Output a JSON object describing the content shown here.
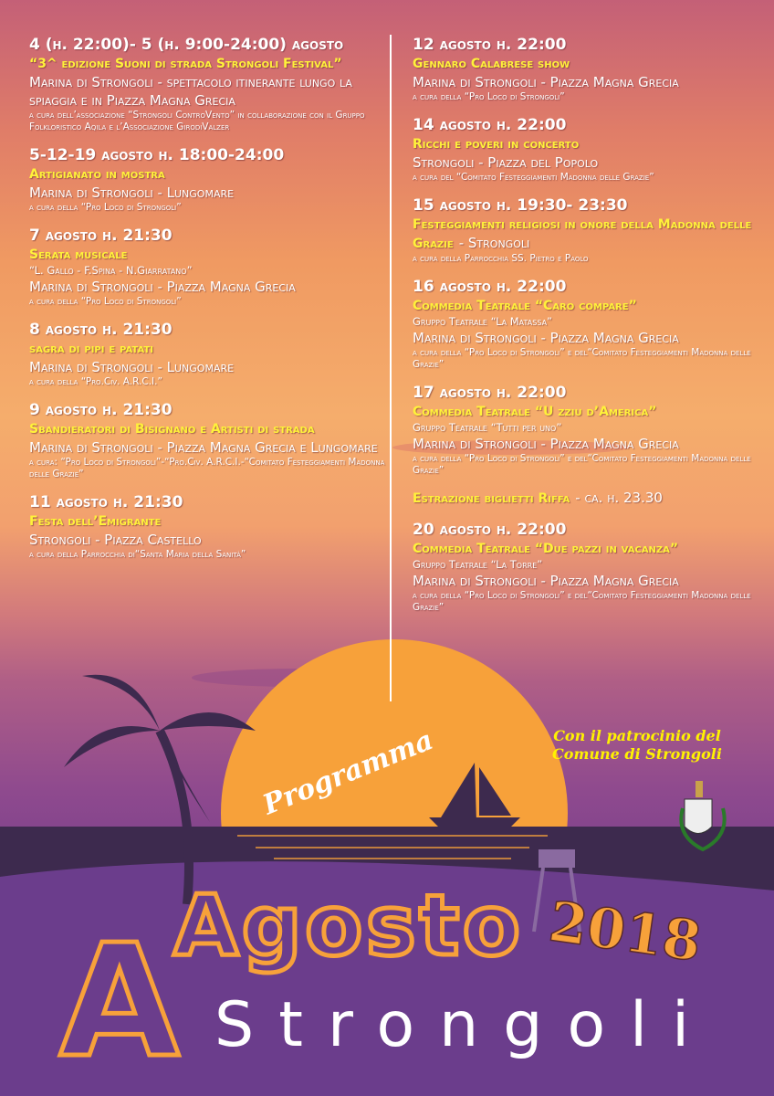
{
  "left_events": [
    {
      "date": "4 (h. 22:00)- 5 (h. 9:00-24:00) agosto",
      "title": "“3^ edizione Suoni di strada Strongoli Festival”",
      "place": "Marina di Strongoli - spettacolo itinerante lungo la spiaggia e in Piazza Magna Grecia",
      "note": "a cura dell’associazione “Strongoli ControVento” in collaborazione con il Gruppo Folkloristico Aqila e l’Associazione GirodiValzer"
    },
    {
      "date": "5-12-19 agosto h. 18:00-24:00",
      "title": "Artigianato in mostra",
      "place": "Marina di Strongoli - Lungomare",
      "note": "a cura della “Pro Loco di Strongoli”"
    },
    {
      "date": "7 agosto h. 21:30",
      "title": "Serata musicale",
      "subtitle": "“L. Gallo - F.Spina - N.Giarratano”",
      "place": "Marina di Strongoli - Piazza Magna Grecia",
      "note": "a cura della “Pro Loco di Strongoli”"
    },
    {
      "date": "8 agosto h. 21:30",
      "title": "sagra di pipi e patati",
      "place": "Marina di Strongoli - Lungomare",
      "note": "a cura della “Pro.Civ. A.R.C.I.”"
    },
    {
      "date": "9 agosto h. 21:30",
      "title": "Sbandieratori di Bisignano e Artisti di strada",
      "place": "Marina di Strongoli - Piazza Magna Grecia e Lungomare",
      "note": "a cura: “Pro Loco di Strongoli”-“Pro.Civ. A.R.C.I.-“Comitato Festeggiamenti Madonna delle Grazie”"
    },
    {
      "date": "11 agosto h. 21:30",
      "title": "Festa dell’Emigrante",
      "place": "Strongoli - Piazza Castello",
      "note": "a cura della Parrocchia di“Santa Maria della Sanità”"
    }
  ],
  "right_events": [
    {
      "date": "12 agosto h. 22:00",
      "title": "Gennaro Calabrese show",
      "place": "Marina di Strongoli - Piazza Magna Grecia",
      "note": "a cura della “Pro Loco di Strongoli”"
    },
    {
      "date": "14 agosto h. 22:00",
      "title": "Ricchi e poveri in concerto",
      "place": "Strongoli - Piazza del Popolo",
      "note": "a cura del “Comitato Festeggiamenti Madonna delle Grazie”"
    },
    {
      "date": "15 agosto h. 19:30- 23:30",
      "title": "Festeggiamenti religiosi in onore della Madonna delle Grazie",
      "place": "- Strongoli",
      "note": "a cura della Parrocchia SS. Pietro e Paolo"
    },
    {
      "date": "16 agosto h. 22:00",
      "title": "Commedia Teatrale “Caro compare”",
      "subtitle": "Gruppo Teatrale “La Matassa”",
      "place": "Marina di Strongoli - Piazza Magna Grecia",
      "note": "a cura della “Pro Loco di Strongoli” e del“Comitato Festeggiamenti Madonna delle Grazie”"
    },
    {
      "date": "17 agosto h. 22:00",
      "title": "Commedia Teatrale “U zziu d’America”",
      "subtitle": "Gruppo Teatrale “Tutti per uno”",
      "place": "Marina di Strongoli - Piazza Magna Grecia",
      "note": "a cura della “Pro Loco di Strongoli” e del“Comitato Festeggiamenti Madonna delle Grazie”"
    },
    {
      "date": "20 agosto h. 22:00",
      "title": "Commedia Teatrale “Due pazzi in vacanza”",
      "subtitle": "Gruppo Teatrale “La Torre”",
      "place": "Marina di Strongoli - Piazza Magna Grecia",
      "note": "a cura della “Pro Loco di Strongoli” e del“Comitato Festeggiamenti Madonna delle Grazie”"
    }
  ],
  "raffle": {
    "title": "Estrazione biglietti Riffa",
    "time": "- ca. h. 23.30"
  },
  "sponsor": [
    "Con il patrocinio del",
    "Comune di Strongoli"
  ],
  "program_label": "Programma",
  "headline": {
    "month": "Agosto",
    "year": "2018",
    "town": "Strongoli"
  }
}
